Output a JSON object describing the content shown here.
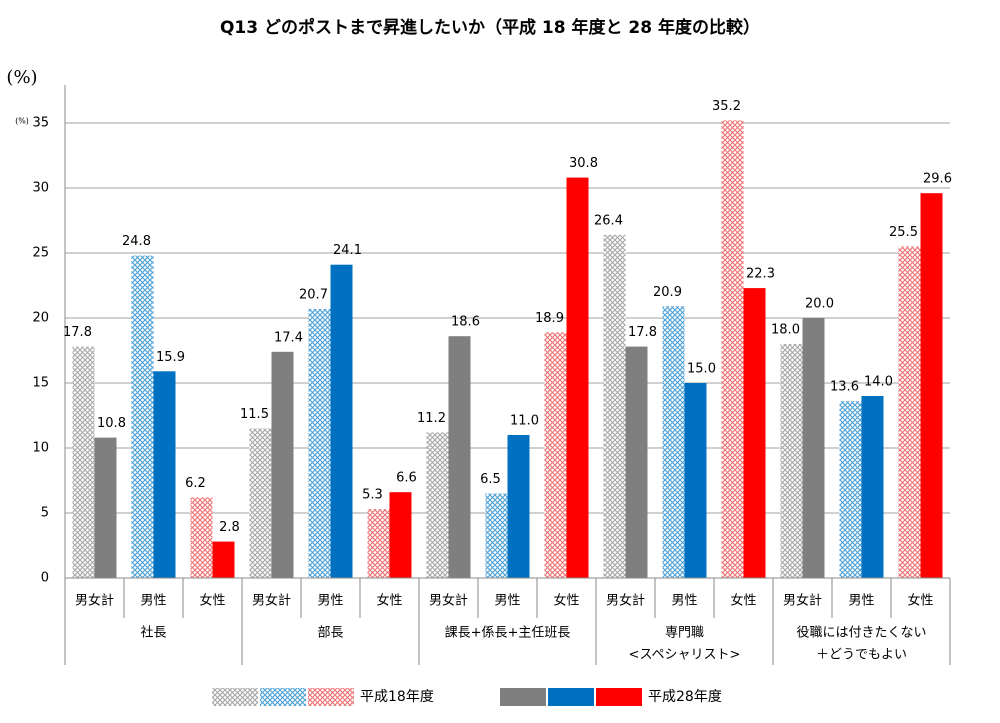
{
  "chart_data": {
    "type": "grouped-bar",
    "title": "Q13 どのポストまで昇進したいか（平成 18 年度と 28 年度の比較）",
    "y_label": "(%)",
    "y_unit": "(%)",
    "ylim": [
      0,
      35
    ],
    "yticks": [
      0,
      5,
      10,
      15,
      20,
      25,
      30,
      35
    ],
    "grid": true,
    "groups": [
      {
        "label": [
          "社長"
        ],
        "categories": [
          "男女計",
          "男性",
          "女性"
        ]
      },
      {
        "label": [
          "部長"
        ],
        "categories": [
          "男女計",
          "男性",
          "女性"
        ]
      },
      {
        "label": [
          "課長+係長+主任班長"
        ],
        "categories": [
          "男女計",
          "男性",
          "女性"
        ]
      },
      {
        "label": [
          "専門職",
          "<スペシャリスト>"
        ],
        "categories": [
          "男女計",
          "男性",
          "女性"
        ]
      },
      {
        "label": [
          "役職には付きたくない",
          "＋どうでもよい"
        ],
        "categories": [
          "男女計",
          "男性",
          "女性"
        ]
      }
    ],
    "series": [
      {
        "name": "平成18年度",
        "pattern": "crosshatch",
        "colors": [
          "#a6a6a6",
          "#4a9fd6",
          "#ee6f6f"
        ],
        "values": [
          [
            17.8,
            24.8,
            6.2
          ],
          [
            11.5,
            20.7,
            5.3
          ],
          [
            11.2,
            6.5,
            18.9
          ],
          [
            26.4,
            20.9,
            35.2
          ],
          [
            18.0,
            13.6,
            25.5
          ]
        ],
        "value_labels": [
          [
            "17.8",
            "24.8",
            "6.2"
          ],
          [
            "11.5",
            "20.7",
            "5.3"
          ],
          [
            "11.2",
            "6.5",
            "18.9"
          ],
          [
            "26.4",
            "20.9",
            "35.2"
          ],
          [
            "18.0",
            "13.6",
            "25.5"
          ]
        ]
      },
      {
        "name": "平成28年度",
        "pattern": "solid",
        "colors": [
          "#7f7f7f",
          "#0070c0",
          "#ff0000"
        ],
        "values": [
          [
            10.8,
            15.9,
            2.8
          ],
          [
            17.4,
            24.1,
            6.6
          ],
          [
            18.6,
            11.0,
            30.8
          ],
          [
            17.8,
            15.0,
            22.3
          ],
          [
            20.0,
            14.0,
            29.6
          ]
        ],
        "value_labels": [
          [
            "10.8",
            "15.9",
            "2.8"
          ],
          [
            "17.4",
            "24.1",
            "6.6"
          ],
          [
            "18.6",
            "11.0",
            "30.8"
          ],
          [
            "17.8",
            "15.0",
            "22.3"
          ],
          [
            "20.0",
            "14.0",
            "29.6"
          ]
        ]
      }
    ]
  }
}
